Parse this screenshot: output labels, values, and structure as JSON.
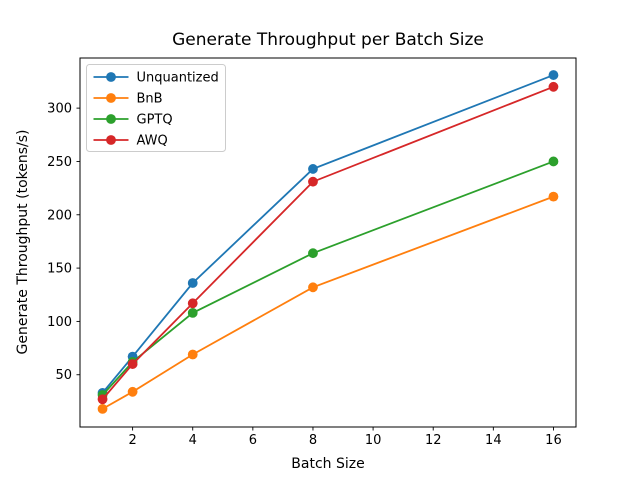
{
  "figure": {
    "background": "#ffffff",
    "axes_border_color": "#000000"
  },
  "chart_data": {
    "type": "line",
    "title": "Generate Throughput per Batch Size",
    "xlabel": "Batch Size",
    "ylabel": "Generate Throughput (tokens/s)",
    "x": [
      1,
      2,
      4,
      8,
      16
    ],
    "series": [
      {
        "name": "Unquantized",
        "color": "#1f77b4",
        "marker": "o",
        "values": [
          33,
          67,
          136,
          243,
          331
        ]
      },
      {
        "name": "BnB",
        "color": "#ff7f0e",
        "marker": "o",
        "values": [
          18,
          34,
          69,
          132,
          217
        ]
      },
      {
        "name": "GPTQ",
        "color": "#2ca02c",
        "marker": "o",
        "values": [
          31,
          62,
          108,
          164,
          250
        ]
      },
      {
        "name": "AWQ",
        "color": "#d62728",
        "marker": "o",
        "values": [
          27,
          60,
          117,
          231,
          320
        ]
      }
    ],
    "xticks": [
      2,
      4,
      6,
      8,
      10,
      12,
      14,
      16
    ],
    "yticks": [
      50,
      100,
      150,
      200,
      250,
      300
    ],
    "xlim": [
      0.25,
      16.75
    ],
    "ylim": [
      1,
      347
    ],
    "grid": false,
    "legend_position": "upper left",
    "legend_border_color": "#cccccc"
  }
}
